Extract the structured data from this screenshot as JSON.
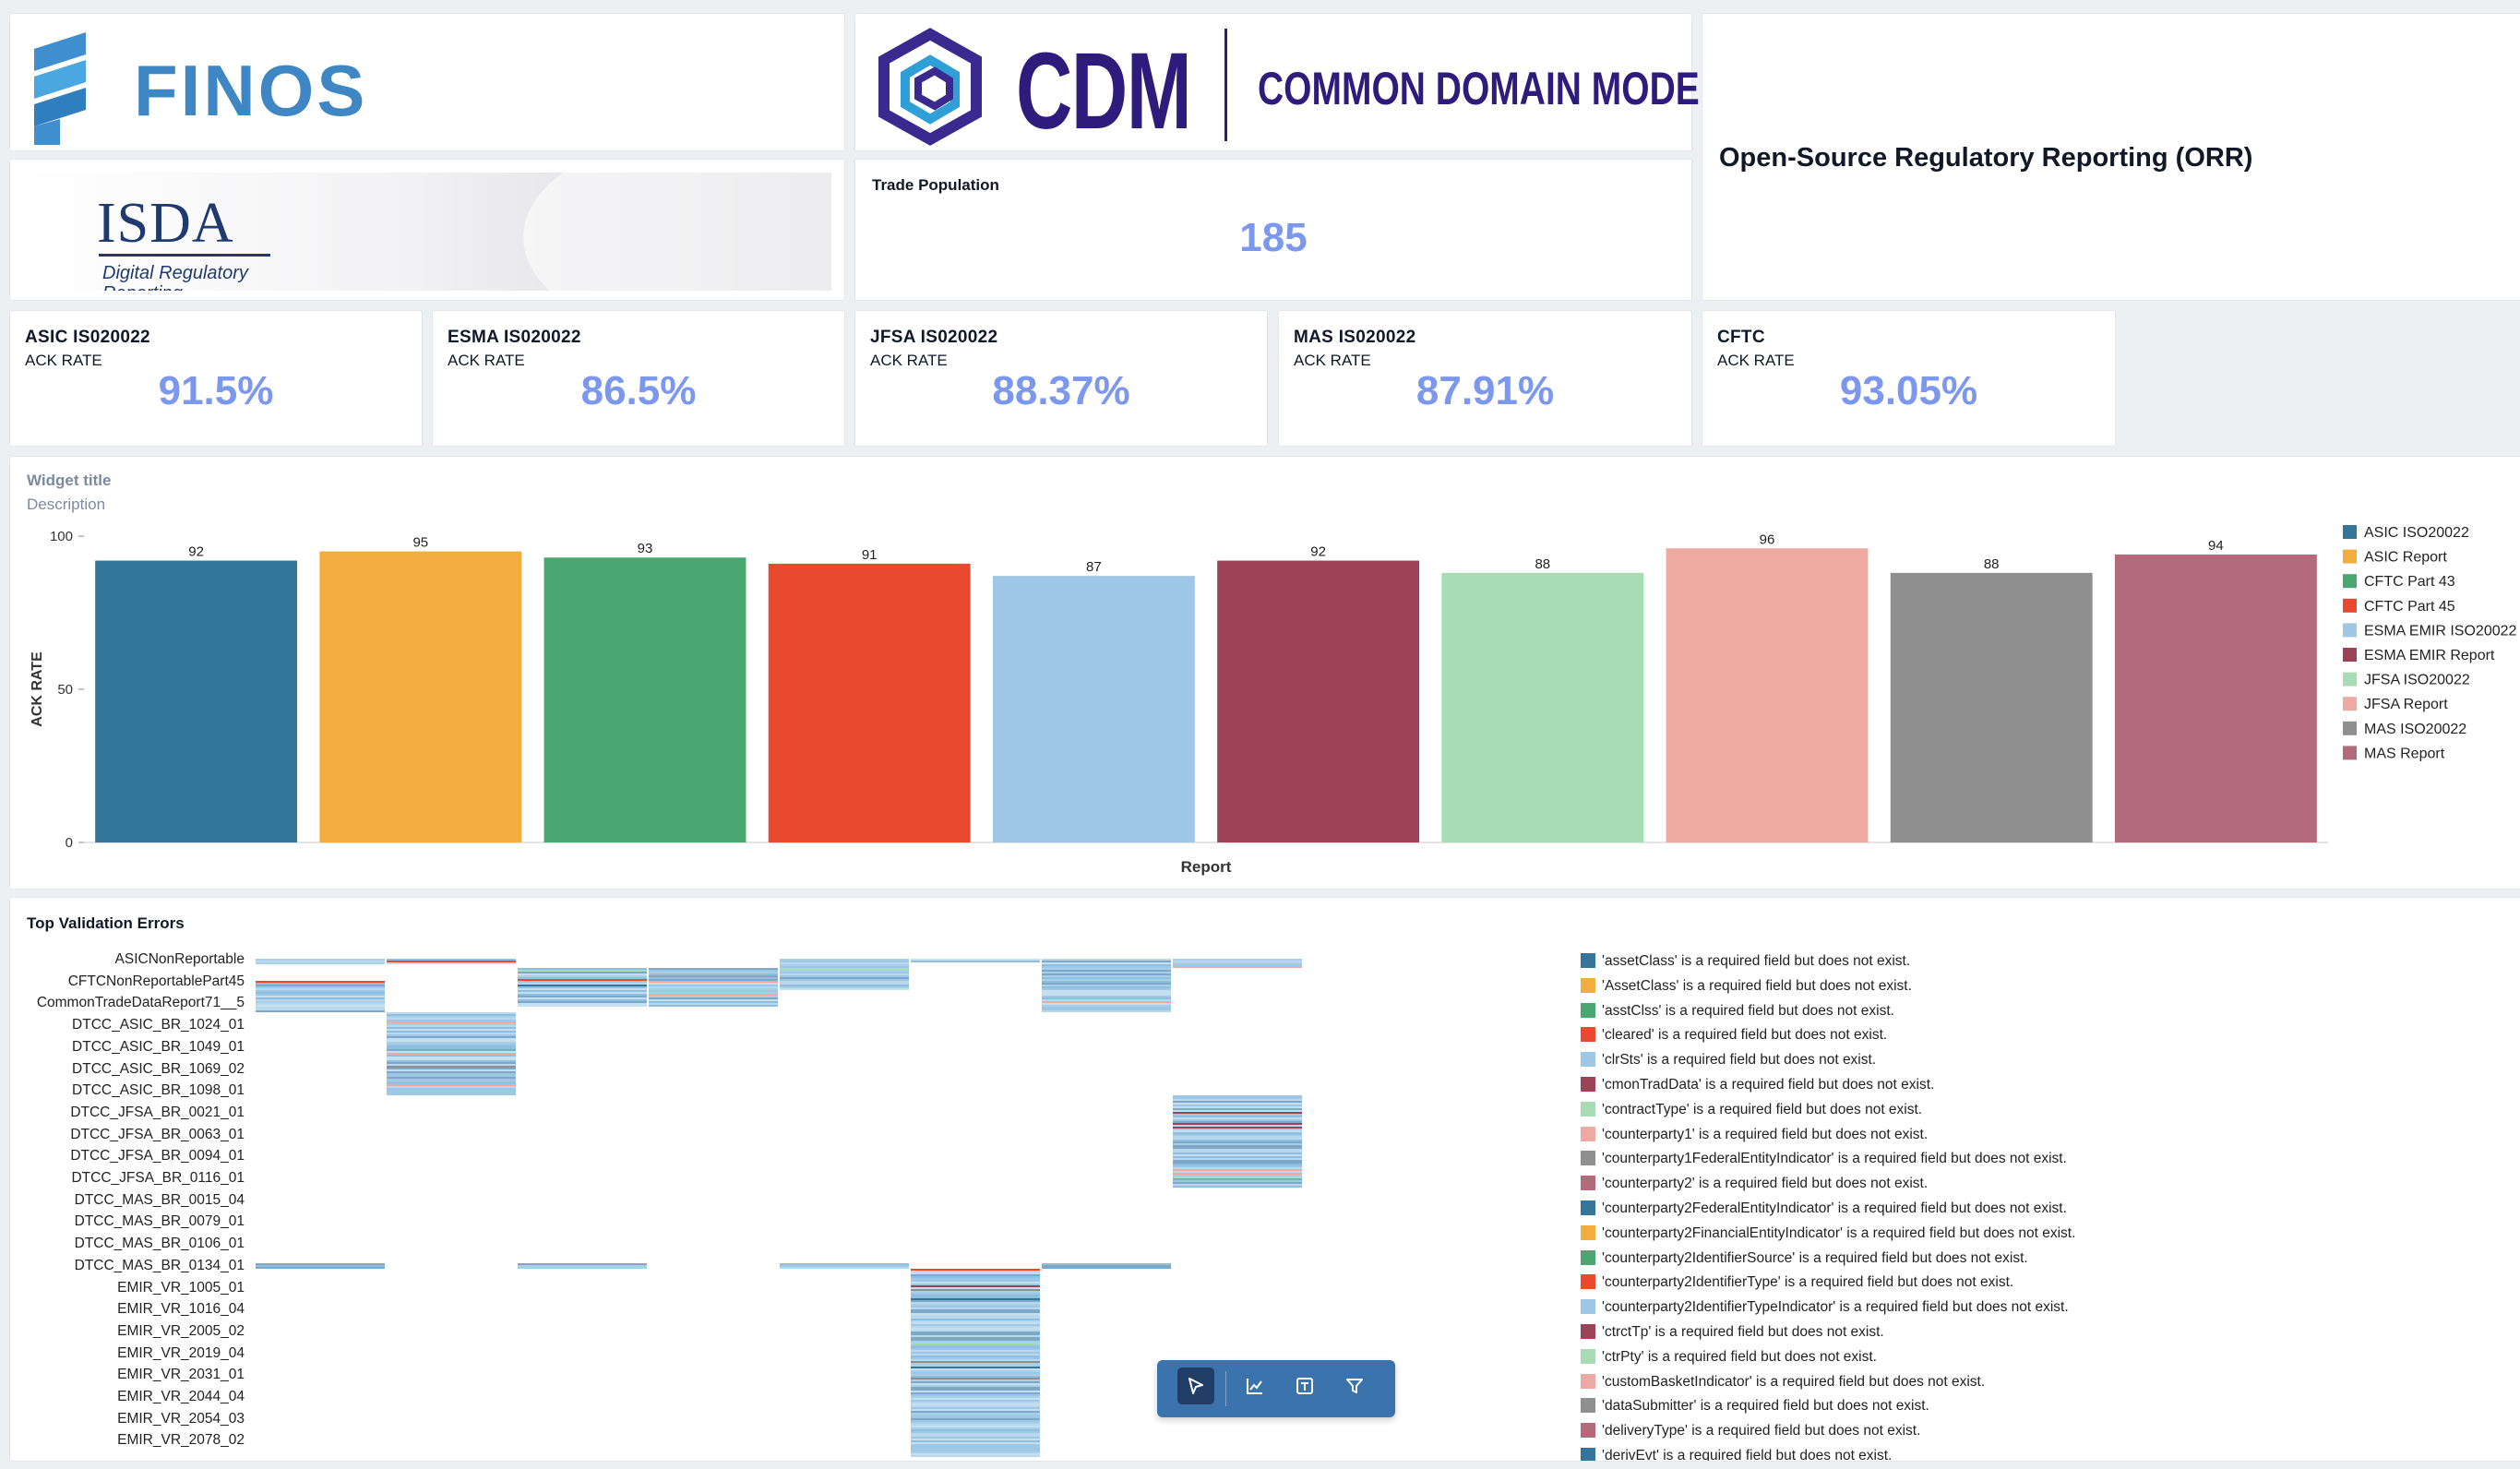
{
  "logos": {
    "finos": "FINOS",
    "cdm_short": "CDM",
    "cdm_long": "COMMON DOMAIN MODEL",
    "isda": "ISDA",
    "isda_sub": "Digital Regulatory",
    "isda_sub2": "Reporting"
  },
  "header": {
    "orr_title": "Open-Source Regulatory Reporting (ORR)",
    "trade_population_label": "Trade Population",
    "trade_population_value": "185"
  },
  "kpis": [
    {
      "label": "ASIC IS020022",
      "sub": "ACK RATE",
      "value": "91.5%"
    },
    {
      "label": "ESMA IS020022",
      "sub": "ACK RATE",
      "value": "86.5%"
    },
    {
      "label": "JFSA IS020022",
      "sub": "ACK RATE",
      "value": "88.37%"
    },
    {
      "label": "MAS IS020022",
      "sub": "ACK RATE",
      "value": "87.91%"
    },
    {
      "label": "CFTC",
      "sub": "ACK RATE",
      "value": "93.05%"
    }
  ],
  "chart_widget": {
    "title": "Widget title",
    "description": "Description"
  },
  "heatmap_widget": {
    "title": "Top Validation Errors"
  },
  "chart_data": [
    {
      "type": "bar",
      "xlabel": "Report",
      "ylabel": "ACK RATE",
      "ylim": [
        0,
        100
      ],
      "yticks": [
        0,
        50,
        100
      ],
      "legend_position": "right",
      "categories": [
        "ASIC ISO20022",
        "ASIC Report",
        "CFTC Part 43",
        "CFTC Part 45",
        "ESMA EMIR ISO20022",
        "ESMA EMIR Report",
        "JFSA ISO20022",
        "JFSA Report",
        "MAS ISO20022",
        "MAS Report"
      ],
      "values": [
        92,
        95,
        93,
        91,
        87,
        92,
        88,
        96,
        88,
        94
      ],
      "colors": [
        "#347699",
        "#f3ad3f",
        "#4aa771",
        "#e9492f",
        "#9dc7e4",
        "#9e4257",
        "#a8dcb5",
        "#eda9a2",
        "#8f8f8f",
        "#b36a7a"
      ]
    },
    {
      "type": "heatmap",
      "title": "Top Validation Errors",
      "y_labels": [
        "ASICNonReportable",
        "CFTCNonReportablePart45",
        "CommonTradeDataReport71__5",
        "DTCC_ASIC_BR_1024_01",
        "DTCC_ASIC_BR_1049_01",
        "DTCC_ASIC_BR_1069_02",
        "DTCC_ASIC_BR_1098_01",
        "DTCC_JFSA_BR_0021_01",
        "DTCC_JFSA_BR_0063_01",
        "DTCC_JFSA_BR_0094_01",
        "DTCC_JFSA_BR_0116_01",
        "DTCC_MAS_BR_0015_04",
        "DTCC_MAS_BR_0079_01",
        "DTCC_MAS_BR_0106_01",
        "DTCC_MAS_BR_0134_01",
        "EMIR_VR_1005_01",
        "EMIR_VR_1016_04",
        "EMIR_VR_2005_02",
        "EMIR_VR_2019_04",
        "EMIR_VR_2031_01",
        "EMIR_VR_2044_04",
        "EMIR_VR_2054_03",
        "EMIR_VR_2078_02"
      ],
      "legend": [
        {
          "label": "'assetClass' is a required field but does not exist.",
          "color": "#347699"
        },
        {
          "label": "'AssetClass' is a required field but does not exist.",
          "color": "#f3ad3f"
        },
        {
          "label": "'asstClss' is a required field but does not exist.",
          "color": "#4aa771"
        },
        {
          "label": "'cleared' is a required field but does not exist.",
          "color": "#e9492f"
        },
        {
          "label": "'clrSts' is a required field but does not exist.",
          "color": "#9dc7e4"
        },
        {
          "label": "'cmonTradData' is a required field but does not exist.",
          "color": "#9e4257"
        },
        {
          "label": "'contractType' is a required field but does not exist.",
          "color": "#a8dcb5"
        },
        {
          "label": "'counterparty1' is a required field but does not exist.",
          "color": "#eda9a2"
        },
        {
          "label": "'counterparty1FederalEntityIndicator' is a required field but does not exist.",
          "color": "#8f8f8f"
        },
        {
          "label": "'counterparty2' is a required field but does not exist.",
          "color": "#b36a7a"
        },
        {
          "label": "'counterparty2FederalEntityIndicator' is a required field but does not exist.",
          "color": "#347699"
        },
        {
          "label": "'counterparty2FinancialEntityIndicator' is a required field but does not exist.",
          "color": "#f3ad3f"
        },
        {
          "label": "'counterparty2IdentifierSource' is a required field but does not exist.",
          "color": "#4aa771"
        },
        {
          "label": "'counterparty2IdentifierType' is a required field but does not exist.",
          "color": "#e9492f"
        },
        {
          "label": "'counterparty2IdentifierTypeIndicator' is a required field but does not exist.",
          "color": "#9dc7e4"
        },
        {
          "label": "'ctrctTp' is a required field but does not exist.",
          "color": "#9e4257"
        },
        {
          "label": "'ctrPty' is a required field but does not exist.",
          "color": "#a8dcb5"
        },
        {
          "label": "'customBasketIndicator' is a required field but does not exist.",
          "color": "#eda9a2"
        },
        {
          "label": "'dataSubmitter' is a required field but does not exist.",
          "color": "#8f8f8f"
        },
        {
          "label": "'deliveryType' is a required field but does not exist.",
          "color": "#b36a7a"
        },
        {
          "label": "'derivEvt' is a required field but does not exist.",
          "color": "#347699"
        }
      ]
    }
  ],
  "toolbar": {
    "tools": [
      "select-tool",
      "chart-tool",
      "text-tool",
      "filter-tool"
    ]
  }
}
